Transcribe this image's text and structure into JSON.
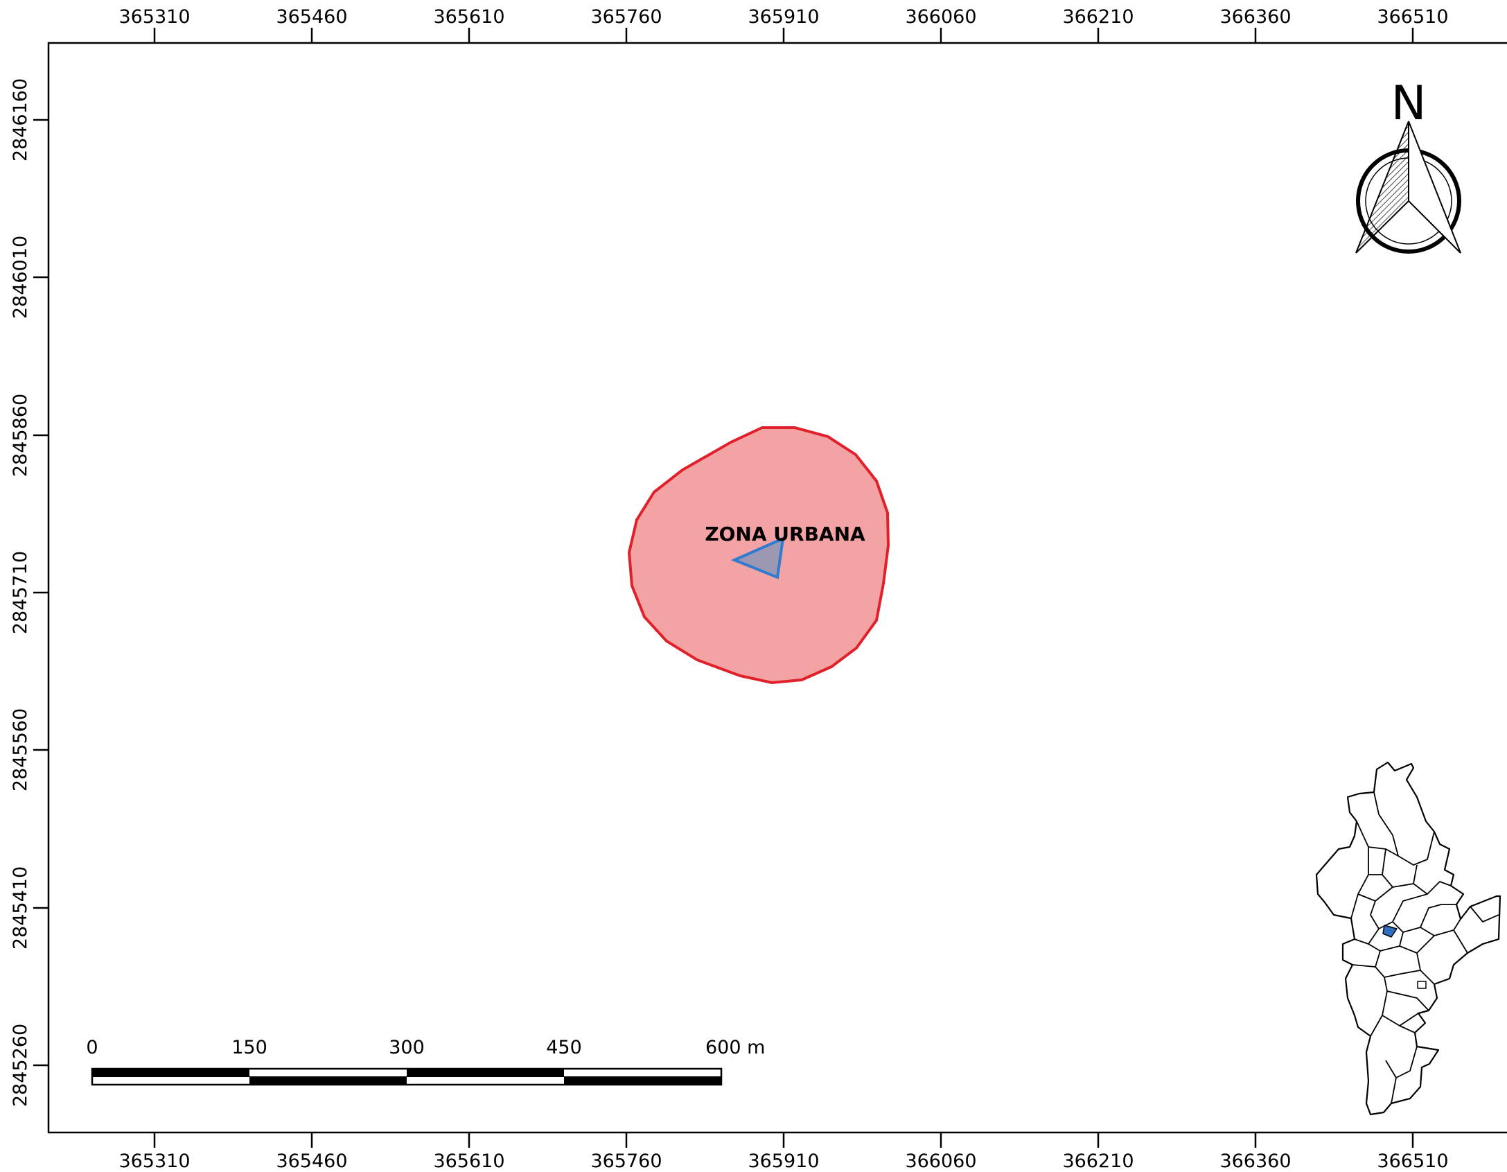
{
  "map": {
    "top_axis_labels": [
      "365310",
      "365460",
      "365610",
      "365760",
      "365910",
      "366060",
      "366210",
      "366360",
      "366510"
    ],
    "bottom_axis_labels": [
      "365310",
      "365460",
      "365610",
      "365760",
      "365910",
      "366060",
      "366210",
      "366360",
      "366510"
    ],
    "left_axis_labels": [
      "2846160",
      "2846010",
      "2845860",
      "2845710",
      "2845560",
      "2845410",
      "2845260"
    ],
    "zone_label": "ZONA URBANA",
    "north_arrow_letter": "N",
    "scale_bar": {
      "labels": [
        "0",
        "150",
        "300",
        "450",
        "600 m"
      ]
    },
    "colors": {
      "buffer_fill": "#f3a3a4",
      "buffer_stroke": "#e0202a",
      "parcel_fill": "#9c98b4",
      "parcel_stroke": "#2f7bd0",
      "inset_highlight": "#2f6fc0"
    }
  }
}
